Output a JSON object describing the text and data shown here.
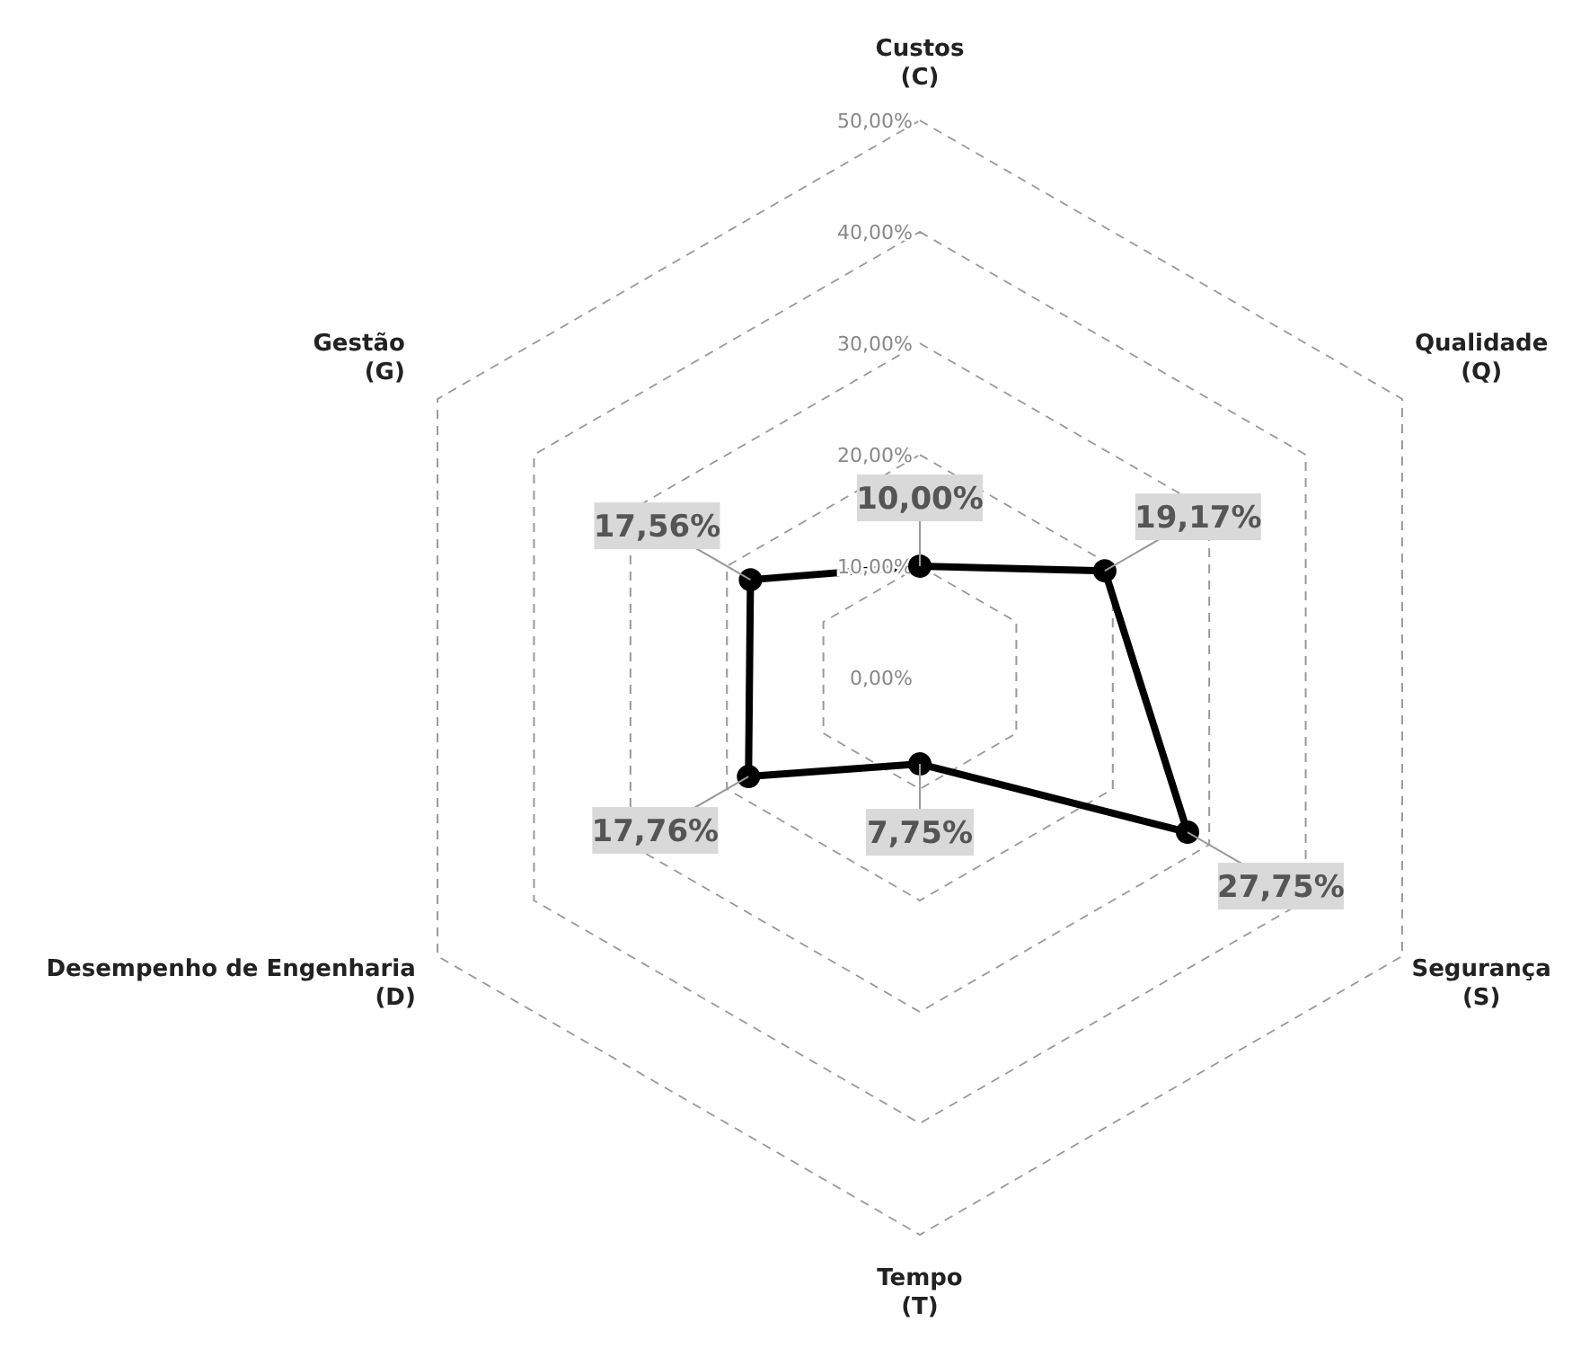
{
  "chart_data": {
    "type": "radar",
    "categories": [
      "Custos\n(C)",
      "Qualidade\n(Q)",
      "Segurança\n(S)",
      "Tempo\n(T)",
      "Desempenho de Engenharia\n(D)",
      "Gestão\n(G)"
    ],
    "series": [
      {
        "color": "#000000",
        "values": [
          10.0,
          19.17,
          27.75,
          7.75,
          17.76,
          17.56
        ],
        "value_labels": [
          "10,00%",
          "19,17%",
          "27,75%",
          "7,75%",
          "17,76%",
          "17,56%"
        ]
      }
    ],
    "ylim": [
      0,
      50
    ],
    "yticks": [
      {
        "value": 0,
        "label": "0,00%"
      },
      {
        "value": 10,
        "label": "10,00%"
      },
      {
        "value": 20,
        "label": "20,00%"
      },
      {
        "value": 30,
        "label": "30,00%"
      },
      {
        "value": 40,
        "label": "40,00%"
      },
      {
        "value": 50,
        "label": "50,00%"
      }
    ],
    "grid": true,
    "marker": "circle"
  }
}
